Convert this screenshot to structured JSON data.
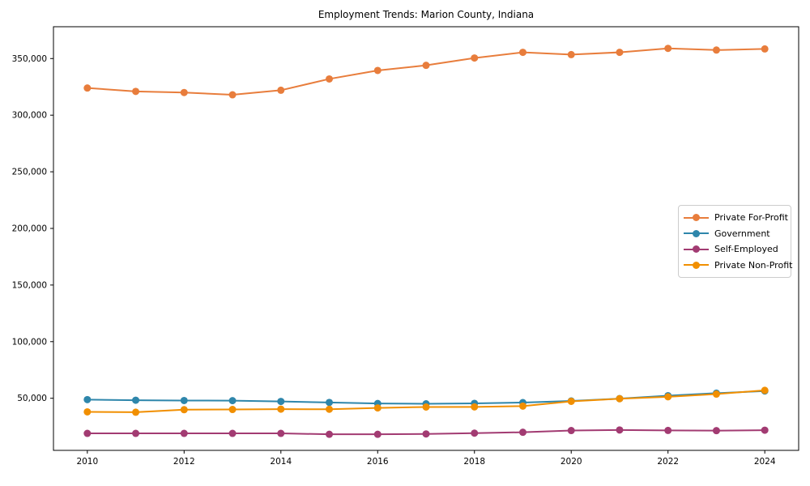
{
  "figure": {
    "background_color": "#ffffff",
    "spine_color": "#000000",
    "text_color": "#000000"
  },
  "chart_data": {
    "type": "line",
    "title": "Employment Trends: Marion County, Indiana",
    "xlabel": "",
    "ylabel": "",
    "grid": false,
    "legend_position": "center right",
    "x": [
      2010,
      2011,
      2012,
      2013,
      2014,
      2015,
      2016,
      2017,
      2018,
      2019,
      2020,
      2021,
      2022,
      2023,
      2024
    ],
    "x_tick_values": [
      2010,
      2012,
      2014,
      2016,
      2018,
      2020,
      2022,
      2024
    ],
    "x_tick_labels": [
      "2010",
      "2012",
      "2014",
      "2016",
      "2018",
      "2020",
      "2022",
      "2024"
    ],
    "y_tick_values": [
      50000,
      100000,
      150000,
      200000,
      250000,
      300000,
      350000
    ],
    "y_tick_labels": [
      "50,000",
      "100,000",
      "150,000",
      "200,000",
      "250,000",
      "300,000",
      "350,000"
    ],
    "xlim": [
      2009.3,
      2024.7
    ],
    "ylim": [
      4000,
      378100
    ],
    "series": [
      {
        "name": "Private For-Profit",
        "color": "#E87D3C",
        "values": [
          324000,
          321000,
          320000,
          318000,
          322000,
          332000,
          339500,
          344000,
          350500,
          355500,
          353500,
          355500,
          359000,
          357500,
          358500
        ]
      },
      {
        "name": "Government",
        "color": "#2E86AB",
        "values": [
          48800,
          48300,
          48000,
          47900,
          47200,
          46300,
          45400,
          45100,
          45500,
          46200,
          47600,
          49700,
          52300,
          54500,
          56400
        ]
      },
      {
        "name": "Self-Employed",
        "color": "#A23B72",
        "values": [
          19000,
          19000,
          19000,
          19000,
          19000,
          18200,
          18200,
          18500,
          19200,
          20000,
          21500,
          22000,
          21600,
          21400,
          21800
        ]
      },
      {
        "name": "Private Non-Profit",
        "color": "#F18F01",
        "values": [
          38000,
          37700,
          39900,
          40100,
          40400,
          40300,
          41500,
          42300,
          42400,
          43100,
          47300,
          49600,
          51300,
          53700,
          57000
        ]
      }
    ]
  }
}
